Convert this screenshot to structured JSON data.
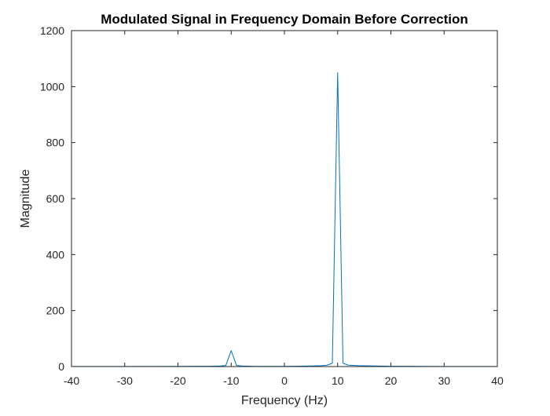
{
  "window": {
    "title": "Modulated Signal in Frequency Domain Before Correction"
  },
  "chart_data": {
    "type": "line",
    "title": "Modulated Signal in Frequency Domain Before Correction",
    "xlabel": "Frequency (Hz)",
    "ylabel": "Magnitude",
    "xlim": [
      -40,
      40
    ],
    "ylim": [
      0,
      1200
    ],
    "xticks": [
      -40,
      -30,
      -20,
      -10,
      0,
      10,
      20,
      30,
      40
    ],
    "yticks": [
      0,
      200,
      400,
      600,
      800,
      1000,
      1200
    ],
    "grid": false,
    "box": true,
    "series": [
      {
        "color": "#0072BD",
        "x": [
          -40,
          -30,
          -20,
          -14,
          -12,
          -11,
          -10,
          -9,
          -8,
          -6,
          0,
          5,
          7,
          8,
          9,
          10,
          11,
          12,
          14,
          20,
          30,
          40
        ],
        "y": [
          0.5,
          0.5,
          0.8,
          1,
          2,
          4,
          57,
          4,
          2,
          1,
          0.8,
          2,
          3,
          5,
          12,
          1050,
          12,
          5,
          3,
          1,
          0.5,
          0.5
        ]
      }
    ]
  }
}
